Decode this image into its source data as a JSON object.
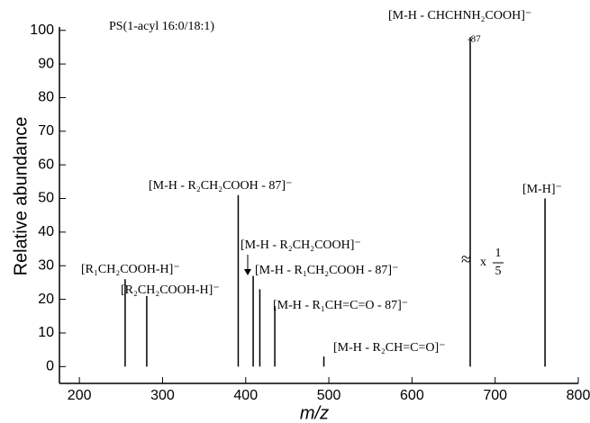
{
  "chart_data": {
    "type": "stem",
    "title": "PS(1-acyl 16:0/18:1)",
    "x_label": "m/z",
    "y_label": "Relative abundance",
    "x": [
      255,
      281,
      391,
      409,
      417,
      435,
      494,
      670,
      760
    ],
    "series": [
      {
        "color": "#000000",
        "values": [
          26,
          21,
          51,
          27,
          23,
          18,
          3,
          98,
          50
        ]
      }
    ],
    "xlim": [
      176,
      800
    ],
    "xticks": [
      200,
      300,
      400,
      500,
      600,
      700,
      800
    ],
    "ylim": [
      -5,
      101
    ],
    "yticks": [
      0,
      10,
      20,
      30,
      40,
      50,
      60,
      70,
      80,
      90,
      100
    ],
    "annotations": [
      "[R₁CH₂COOH-H]⁻",
      "[R₂CH₂COOH-H]⁻",
      "[M-H - R₂CH₂COOH - 87]⁻",
      "[M-H - R₂CH₂COOH]⁻",
      "[M-H - R₁CH₂COOH - 87]⁻",
      "[M-H - R₁CH=C=O - 87]⁻",
      "[M-H - R₂CH=C=O]⁻",
      "[M-H - CHCHNH₂COOH]⁻",
      "-87",
      "[M-H]⁻"
    ],
    "scale_note": {
      "symbol": "≈",
      "text": "x",
      "numerator": "1",
      "denominator": "5"
    }
  }
}
